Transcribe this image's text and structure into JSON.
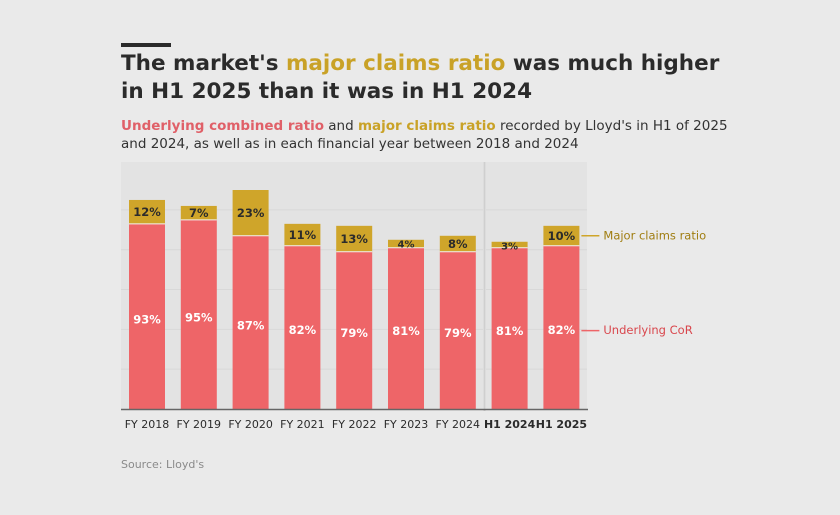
{
  "header": {
    "title_pre": "The market's ",
    "title_highlight": "major claims ratio",
    "title_post": " was much higher in H1 2025 than it was in H1 2024",
    "subtitle_red": "Underlying combined ratio",
    "subtitle_and": " and ",
    "subtitle_gold": "major claims ratio",
    "subtitle_post": " recorded by Lloyd's in H1 of 2025 and 2024, as well as in each financial year between 2018 and 2024"
  },
  "source": "Source: Lloyd's",
  "colors": {
    "underlying": "#ee6568",
    "major": "#cfa52a",
    "background": "#eaeaea",
    "panel": "#e3e3e3",
    "axis": "#666666",
    "legend_major_text": "#a07d10",
    "legend_underlying_text": "#d9474d"
  },
  "chart_data": {
    "type": "bar",
    "stacked": true,
    "categories": [
      "FY 2018",
      "FY 2019",
      "FY 2020",
      "FY 2021",
      "FY 2022",
      "FY 2023",
      "FY 2024",
      "H1 2024",
      "H1 2025"
    ],
    "bold_categories": [
      "H1 2024",
      "H1 2025"
    ],
    "series": [
      {
        "name": "Underlying CoR",
        "values": [
          93,
          95,
          87,
          82,
          79,
          81,
          79,
          81,
          82
        ],
        "labels": [
          "93%",
          "95%",
          "87%",
          "82%",
          "79%",
          "81%",
          "79%",
          "81%",
          "82%"
        ]
      },
      {
        "name": "Major claims ratio",
        "values": [
          12,
          7,
          23,
          11,
          13,
          4,
          8,
          3,
          10
        ],
        "labels": [
          "12%",
          "7%",
          "23%",
          "11%",
          "13%",
          "4%",
          "8%",
          "3%",
          "10%"
        ]
      }
    ],
    "legend": [
      {
        "label": "Major claims ratio",
        "series": "Major claims ratio"
      },
      {
        "label": "Underlying CoR",
        "series": "Underlying CoR"
      }
    ],
    "ylim": [
      0,
      112
    ],
    "xlabel": "",
    "ylabel": ""
  }
}
